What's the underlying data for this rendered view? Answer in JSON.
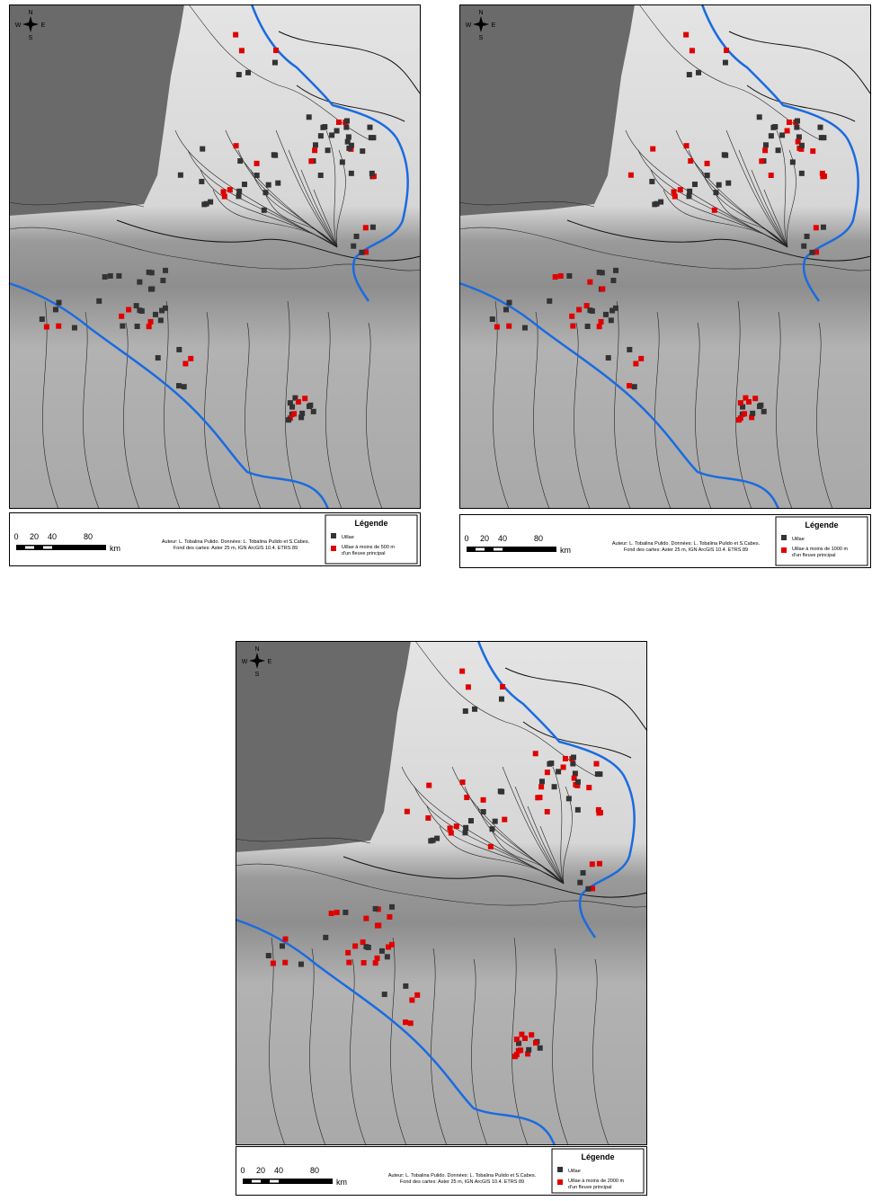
{
  "maps": [
    {
      "compass": {
        "n": "N",
        "s": "S",
        "e": "E",
        "w": "W"
      },
      "scale": {
        "labels": [
          "0",
          "20",
          "40",
          "80"
        ],
        "unit": "km"
      },
      "credits": [
        "Auteur: L. Tobalina Pulido. Données: L. Tobalina Pulido et S.Cabes.",
        "Fond des cartes: Aster 25 m, IGN ArcGIS 10.4. ETRS 89"
      ],
      "legend": {
        "title": "Légende",
        "item1": "Uillae",
        "item2_lines": [
          "Uillae à moins de 500 m",
          "d'un fleuve principal"
        ]
      }
    },
    {
      "compass": {
        "n": "N",
        "s": "S",
        "e": "E",
        "w": "W"
      },
      "scale": {
        "labels": [
          "0",
          "20",
          "40",
          "80"
        ],
        "unit": "km"
      },
      "credits": [
        "Auteur: L. Tobalina Pulido. Données: L. Tobalina Pulido et S.Cabes.",
        "Fond des cartes: Aster 25 m, IGN ArcGIS 10.4. ETRS 89"
      ],
      "legend": {
        "title": "Légende",
        "item1": "Uillae",
        "item2_lines": [
          "Uillae à moins de 1000 m",
          "d'un fleuve principal"
        ]
      }
    },
    {
      "compass": {
        "n": "N",
        "s": "S",
        "e": "E",
        "w": "W"
      },
      "scale": {
        "labels": [
          "0",
          "20",
          "40",
          "80"
        ],
        "unit": "km"
      },
      "credits": [
        "Auteur: L. Tobalina Pulido. Données: L. Tobalina Pulido et S.Cabes.",
        "Fond des cartes: Aster 25 m, IGN ArcGIS 10.4. ETRS 89"
      ],
      "legend": {
        "title": "Légende",
        "item1": "Uillae",
        "item2_lines": [
          "Uillae à moins de 2000 m",
          "d'un fleuve principal"
        ]
      }
    }
  ]
}
